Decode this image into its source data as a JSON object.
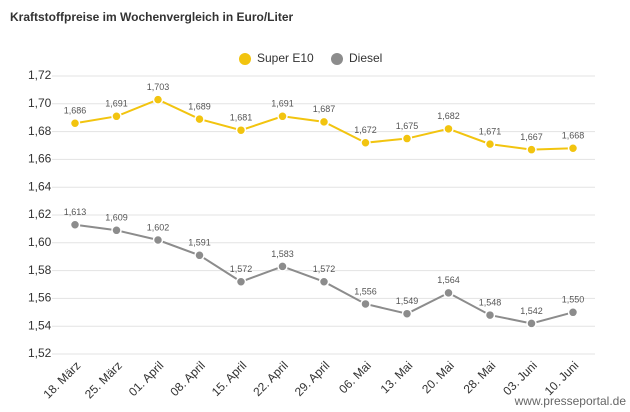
{
  "chart_data": {
    "type": "line",
    "title": "Kraftstoffpreise im Wochenvergleich in Euro/Liter",
    "categories": [
      "18. März",
      "25. März",
      "01. April",
      "08. April",
      "15. April",
      "22. April",
      "29. April",
      "06. Mai",
      "13. Mai",
      "20. Mai",
      "28. Mai",
      "03. Juni",
      "10. Juni"
    ],
    "series": [
      {
        "name": "Super E10",
        "color": "#f2c40f",
        "values": [
          1.686,
          1.691,
          1.703,
          1.689,
          1.681,
          1.691,
          1.687,
          1.672,
          1.675,
          1.682,
          1.671,
          1.667,
          1.668
        ],
        "value_labels": [
          "1,686",
          "1,691",
          "1,703",
          "1,689",
          "1,681",
          "1,691",
          "1,687",
          "1,672",
          "1,675",
          "1,682",
          "1,671",
          "1,667",
          "1,668"
        ]
      },
      {
        "name": "Diesel",
        "color": "#8c8c8c",
        "values": [
          1.613,
          1.609,
          1.602,
          1.591,
          1.572,
          1.583,
          1.572,
          1.556,
          1.549,
          1.564,
          1.548,
          1.542,
          1.55
        ],
        "value_labels": [
          "1,613",
          "1,609",
          "1,602",
          "1,591",
          "1,572",
          "1,583",
          "1,572",
          "1,556",
          "1,549",
          "1,564",
          "1,548",
          "1,542",
          "1,550"
        ]
      }
    ],
    "ylim": [
      1.52,
      1.72
    ],
    "yticks": [
      {
        "value": 1.52,
        "label": "1,52"
      },
      {
        "value": 1.54,
        "label": "1,54"
      },
      {
        "value": 1.56,
        "label": "1,56"
      },
      {
        "value": 1.58,
        "label": "1,58"
      },
      {
        "value": 1.6,
        "label": "1,60"
      },
      {
        "value": 1.62,
        "label": "1,62"
      },
      {
        "value": 1.64,
        "label": "1,64"
      },
      {
        "value": 1.66,
        "label": "1,66"
      },
      {
        "value": 1.68,
        "label": "1,68"
      },
      {
        "value": 1.7,
        "label": "1,70"
      },
      {
        "value": 1.72,
        "label": "1,72"
      }
    ],
    "grid": true,
    "legend": "top",
    "watermark": "www.presseportal.de"
  }
}
